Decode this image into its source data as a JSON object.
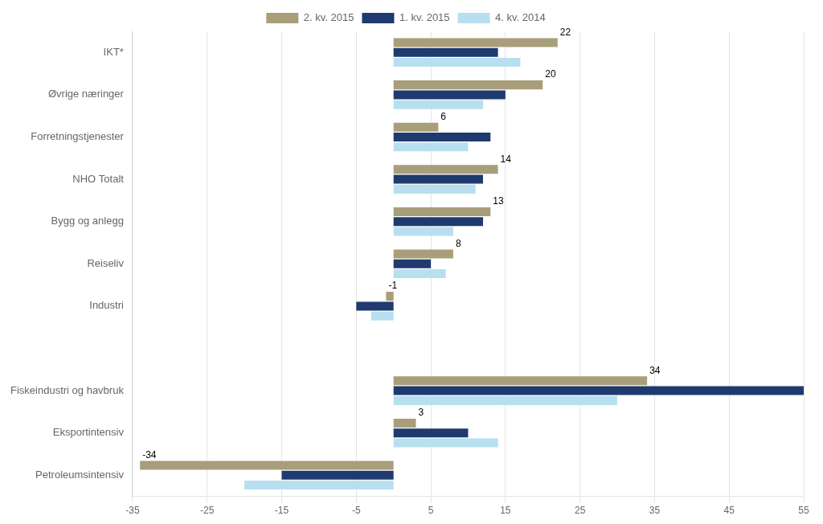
{
  "chart_data": {
    "type": "bar",
    "orientation": "horizontal",
    "categories": [
      "Petroleumsintensiv",
      "Eksportintensiv",
      "Fiskeindustri og havbruk",
      null,
      "Industri",
      "Reiseliv",
      "Bygg og anlegg",
      "NHO Totalt",
      "Forretningstjenester",
      "Øvrige næringer",
      "IKT*"
    ],
    "series": [
      {
        "name": "2. kv. 2015",
        "color": "#a89e7a",
        "values": [
          -34,
          3,
          34,
          null,
          -1,
          8,
          13,
          14,
          6,
          20,
          22
        ],
        "data_labels": true
      },
      {
        "name": "1. kv. 2015",
        "color": "#1f3a6e",
        "values": [
          -15,
          10,
          55,
          null,
          -5,
          5,
          12,
          12,
          13,
          15,
          14
        ]
      },
      {
        "name": "4. kv. 2014",
        "color": "#b8dff0",
        "values": [
          -20,
          14,
          30,
          null,
          -3,
          7,
          8,
          11,
          10,
          12,
          17
        ]
      }
    ],
    "xlim": [
      -35,
      55
    ],
    "xticks": [
      -35,
      -25,
      -15,
      -5,
      5,
      15,
      25,
      35,
      45,
      55
    ],
    "grid": true,
    "legend": "top"
  }
}
